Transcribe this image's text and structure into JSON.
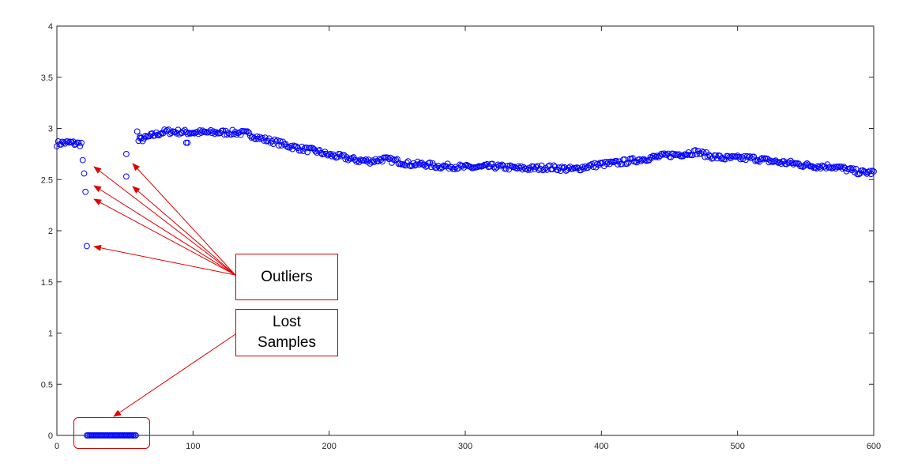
{
  "chart_data": {
    "type": "scatter",
    "title": "",
    "xlabel": "",
    "ylabel": "",
    "xlim": [
      0,
      600
    ],
    "ylim": [
      0,
      4
    ],
    "x_ticks": [
      "0",
      "100",
      "200",
      "300",
      "400",
      "500",
      "600"
    ],
    "y_ticks": [
      "0",
      "0.5",
      "1",
      "1.5",
      "2",
      "2.5",
      "3",
      "3.5",
      "4"
    ],
    "marker": "circle",
    "marker_color": "#0000ff",
    "series": [
      {
        "trend": [
          [
            0,
            2.85
          ],
          [
            5,
            2.86
          ],
          [
            10,
            2.86
          ],
          [
            15,
            2.85
          ],
          [
            18,
            2.85
          ],
          [
            60,
            2.88
          ],
          [
            70,
            2.93
          ],
          [
            80,
            2.97
          ],
          [
            100,
            2.96
          ],
          [
            120,
            2.96
          ],
          [
            130,
            2.96
          ],
          [
            140,
            2.95
          ],
          [
            150,
            2.9
          ],
          [
            160,
            2.87
          ],
          [
            170,
            2.83
          ],
          [
            180,
            2.8
          ],
          [
            190,
            2.78
          ],
          [
            200,
            2.74
          ],
          [
            210,
            2.72
          ],
          [
            220,
            2.69
          ],
          [
            230,
            2.68
          ],
          [
            240,
            2.7
          ],
          [
            250,
            2.68
          ],
          [
            260,
            2.65
          ],
          [
            270,
            2.65
          ],
          [
            280,
            2.63
          ],
          [
            290,
            2.63
          ],
          [
            300,
            2.62
          ],
          [
            310,
            2.62
          ],
          [
            320,
            2.63
          ],
          [
            330,
            2.62
          ],
          [
            340,
            2.61
          ],
          [
            350,
            2.61
          ],
          [
            360,
            2.62
          ],
          [
            370,
            2.61
          ],
          [
            380,
            2.6
          ],
          [
            390,
            2.63
          ],
          [
            400,
            2.65
          ],
          [
            410,
            2.66
          ],
          [
            420,
            2.68
          ],
          [
            430,
            2.7
          ],
          [
            440,
            2.72
          ],
          [
            450,
            2.74
          ],
          [
            460,
            2.75
          ],
          [
            470,
            2.77
          ],
          [
            480,
            2.73
          ],
          [
            490,
            2.71
          ],
          [
            500,
            2.71
          ],
          [
            510,
            2.71
          ],
          [
            520,
            2.69
          ],
          [
            530,
            2.67
          ],
          [
            540,
            2.66
          ],
          [
            550,
            2.64
          ],
          [
            560,
            2.63
          ],
          [
            570,
            2.63
          ],
          [
            580,
            2.6
          ],
          [
            590,
            2.57
          ],
          [
            600,
            2.57
          ]
        ],
        "outliers": [
          [
            19,
            2.69
          ],
          [
            20,
            2.56
          ],
          [
            21,
            2.38
          ],
          [
            22,
            1.85
          ],
          [
            51,
            2.75
          ],
          [
            51,
            2.53
          ],
          [
            59,
            2.97
          ],
          [
            61,
            2.92
          ],
          [
            95,
            2.86
          ],
          [
            96,
            2.86
          ]
        ],
        "lost_samples": {
          "x_range": [
            22,
            58
          ],
          "y": 0
        }
      }
    ],
    "annotations": [
      {
        "text": "Outliers"
      },
      {
        "text": "Lost\nSamples"
      }
    ],
    "annotation_color": "#e00000"
  }
}
